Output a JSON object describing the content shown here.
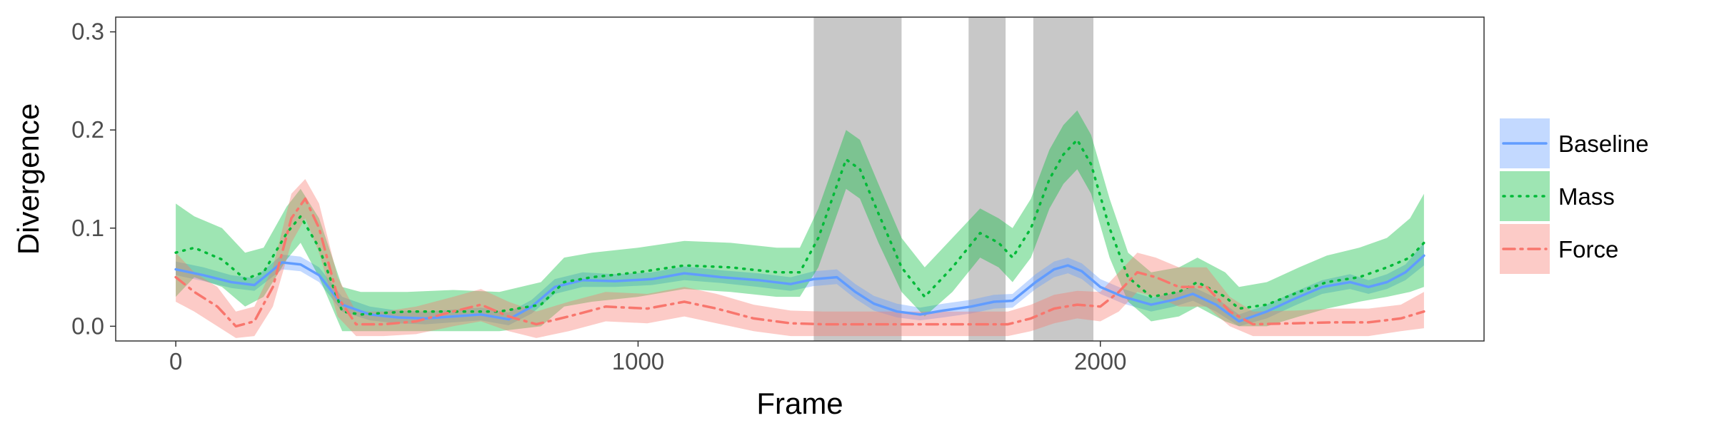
{
  "chart_data": {
    "type": "line",
    "xlabel": "Frame",
    "ylabel": "Divergence",
    "xlim": [
      -130,
      2830
    ],
    "ylim": [
      -0.015,
      0.315
    ],
    "x_ticks": [
      0,
      1000,
      2000
    ],
    "y_ticks": [
      0.0,
      0.1,
      0.2,
      0.3
    ],
    "x_tick_labels": [
      "0",
      "1000",
      "2000"
    ],
    "y_tick_labels": [
      "0.0",
      "0.1",
      "0.2",
      "0.3"
    ],
    "grid": false,
    "legend_position": "right",
    "shaded_regions": [
      [
        1380,
        1570
      ],
      [
        1715,
        1795
      ],
      [
        1855,
        1985
      ]
    ],
    "shade_color": "#c8c8c8",
    "series": [
      {
        "name": "Baseline",
        "color": "#619cff",
        "line_style": "solid",
        "points": [
          [
            0,
            0.058,
            0.052,
            0.066
          ],
          [
            60,
            0.052,
            0.046,
            0.06
          ],
          [
            120,
            0.045,
            0.039,
            0.052
          ],
          [
            170,
            0.042,
            0.036,
            0.049
          ],
          [
            230,
            0.065,
            0.058,
            0.073
          ],
          [
            270,
            0.063,
            0.056,
            0.071
          ],
          [
            310,
            0.052,
            0.045,
            0.06
          ],
          [
            360,
            0.022,
            0.015,
            0.03
          ],
          [
            420,
            0.012,
            0.006,
            0.02
          ],
          [
            480,
            0.009,
            0.003,
            0.016
          ],
          [
            540,
            0.008,
            0.002,
            0.015
          ],
          [
            600,
            0.01,
            0.004,
            0.017
          ],
          [
            660,
            0.012,
            0.006,
            0.019
          ],
          [
            720,
            0.007,
            0.001,
            0.014
          ],
          [
            770,
            0.02,
            0.013,
            0.027
          ],
          [
            820,
            0.04,
            0.033,
            0.048
          ],
          [
            880,
            0.047,
            0.04,
            0.055
          ],
          [
            950,
            0.046,
            0.04,
            0.053
          ],
          [
            1030,
            0.048,
            0.042,
            0.055
          ],
          [
            1100,
            0.054,
            0.047,
            0.061
          ],
          [
            1180,
            0.05,
            0.044,
            0.057
          ],
          [
            1260,
            0.047,
            0.04,
            0.054
          ],
          [
            1330,
            0.043,
            0.036,
            0.05
          ],
          [
            1380,
            0.048,
            0.041,
            0.056
          ],
          [
            1430,
            0.05,
            0.043,
            0.058
          ],
          [
            1470,
            0.035,
            0.028,
            0.043
          ],
          [
            1510,
            0.023,
            0.016,
            0.031
          ],
          [
            1560,
            0.015,
            0.009,
            0.023
          ],
          [
            1610,
            0.012,
            0.006,
            0.019
          ],
          [
            1660,
            0.016,
            0.009,
            0.023
          ],
          [
            1720,
            0.02,
            0.013,
            0.027
          ],
          [
            1770,
            0.025,
            0.018,
            0.032
          ],
          [
            1810,
            0.026,
            0.019,
            0.033
          ],
          [
            1860,
            0.045,
            0.038,
            0.053
          ],
          [
            1900,
            0.058,
            0.05,
            0.066
          ],
          [
            1930,
            0.062,
            0.054,
            0.07
          ],
          [
            1960,
            0.056,
            0.048,
            0.064
          ],
          [
            2000,
            0.04,
            0.033,
            0.048
          ],
          [
            2050,
            0.03,
            0.023,
            0.038
          ],
          [
            2110,
            0.022,
            0.015,
            0.029
          ],
          [
            2160,
            0.027,
            0.02,
            0.034
          ],
          [
            2200,
            0.033,
            0.026,
            0.04
          ],
          [
            2250,
            0.022,
            0.015,
            0.029
          ],
          [
            2300,
            0.005,
            0.0,
            0.012
          ],
          [
            2360,
            0.015,
            0.008,
            0.022
          ],
          [
            2420,
            0.028,
            0.021,
            0.035
          ],
          [
            2480,
            0.04,
            0.033,
            0.047
          ],
          [
            2540,
            0.045,
            0.038,
            0.053
          ],
          [
            2580,
            0.04,
            0.033,
            0.047
          ],
          [
            2620,
            0.045,
            0.038,
            0.053
          ],
          [
            2660,
            0.055,
            0.047,
            0.063
          ],
          [
            2700,
            0.072,
            0.062,
            0.085
          ]
        ]
      },
      {
        "name": "Mass",
        "color": "#00ba38",
        "line_style": "dotted",
        "points": [
          [
            0,
            0.075,
            0.03,
            0.125
          ],
          [
            40,
            0.08,
            0.05,
            0.112
          ],
          [
            100,
            0.068,
            0.04,
            0.1
          ],
          [
            150,
            0.048,
            0.02,
            0.075
          ],
          [
            190,
            0.055,
            0.03,
            0.08
          ],
          [
            240,
            0.095,
            0.068,
            0.122
          ],
          [
            270,
            0.112,
            0.085,
            0.14
          ],
          [
            310,
            0.08,
            0.05,
            0.11
          ],
          [
            360,
            0.015,
            -0.005,
            0.04
          ],
          [
            400,
            0.012,
            -0.005,
            0.035
          ],
          [
            500,
            0.015,
            -0.005,
            0.035
          ],
          [
            600,
            0.015,
            -0.005,
            0.037
          ],
          [
            700,
            0.015,
            -0.005,
            0.035
          ],
          [
            790,
            0.022,
            0.0,
            0.045
          ],
          [
            840,
            0.045,
            0.02,
            0.07
          ],
          [
            900,
            0.05,
            0.025,
            0.075
          ],
          [
            1000,
            0.055,
            0.03,
            0.08
          ],
          [
            1100,
            0.062,
            0.038,
            0.087
          ],
          [
            1200,
            0.06,
            0.035,
            0.085
          ],
          [
            1300,
            0.055,
            0.03,
            0.08
          ],
          [
            1350,
            0.055,
            0.03,
            0.08
          ],
          [
            1390,
            0.09,
            0.06,
            0.12
          ],
          [
            1420,
            0.13,
            0.1,
            0.16
          ],
          [
            1450,
            0.17,
            0.14,
            0.2
          ],
          [
            1480,
            0.16,
            0.13,
            0.19
          ],
          [
            1520,
            0.115,
            0.085,
            0.145
          ],
          [
            1570,
            0.06,
            0.035,
            0.09
          ],
          [
            1620,
            0.03,
            0.01,
            0.06
          ],
          [
            1680,
            0.06,
            0.035,
            0.09
          ],
          [
            1740,
            0.095,
            0.07,
            0.12
          ],
          [
            1780,
            0.085,
            0.06,
            0.11
          ],
          [
            1810,
            0.07,
            0.045,
            0.1
          ],
          [
            1850,
            0.1,
            0.07,
            0.13
          ],
          [
            1890,
            0.15,
            0.12,
            0.18
          ],
          [
            1920,
            0.175,
            0.145,
            0.205
          ],
          [
            1950,
            0.19,
            0.16,
            0.22
          ],
          [
            1980,
            0.165,
            0.135,
            0.195
          ],
          [
            2020,
            0.1,
            0.07,
            0.13
          ],
          [
            2060,
            0.05,
            0.025,
            0.075
          ],
          [
            2110,
            0.03,
            0.005,
            0.055
          ],
          [
            2170,
            0.035,
            0.01,
            0.06
          ],
          [
            2210,
            0.045,
            0.02,
            0.07
          ],
          [
            2270,
            0.03,
            0.005,
            0.055
          ],
          [
            2300,
            0.018,
            0.0,
            0.04
          ],
          [
            2360,
            0.022,
            0.0,
            0.045
          ],
          [
            2430,
            0.035,
            0.01,
            0.06
          ],
          [
            2490,
            0.045,
            0.018,
            0.072
          ],
          [
            2560,
            0.05,
            0.025,
            0.08
          ],
          [
            2620,
            0.06,
            0.03,
            0.09
          ],
          [
            2670,
            0.07,
            0.035,
            0.11
          ],
          [
            2700,
            0.085,
            0.04,
            0.135
          ]
        ]
      },
      {
        "name": "Force",
        "color": "#f8766d",
        "line_style": "dashdot",
        "points": [
          [
            0,
            0.05,
            0.025,
            0.075
          ],
          [
            40,
            0.035,
            0.015,
            0.055
          ],
          [
            90,
            0.02,
            0.0,
            0.04
          ],
          [
            130,
            0.0,
            -0.012,
            0.015
          ],
          [
            170,
            0.005,
            -0.01,
            0.02
          ],
          [
            210,
            0.04,
            0.02,
            0.06
          ],
          [
            250,
            0.11,
            0.085,
            0.135
          ],
          [
            280,
            0.13,
            0.11,
            0.15
          ],
          [
            310,
            0.1,
            0.075,
            0.125
          ],
          [
            350,
            0.03,
            0.01,
            0.05
          ],
          [
            390,
            0.002,
            -0.01,
            0.015
          ],
          [
            450,
            0.002,
            -0.01,
            0.015
          ],
          [
            520,
            0.005,
            -0.008,
            0.02
          ],
          [
            600,
            0.015,
            0.0,
            0.03
          ],
          [
            660,
            0.022,
            0.005,
            0.038
          ],
          [
            720,
            0.01,
            -0.005,
            0.025
          ],
          [
            780,
            0.002,
            -0.012,
            0.015
          ],
          [
            850,
            0.01,
            -0.005,
            0.025
          ],
          [
            930,
            0.02,
            0.005,
            0.035
          ],
          [
            1020,
            0.018,
            0.003,
            0.033
          ],
          [
            1100,
            0.025,
            0.01,
            0.04
          ],
          [
            1170,
            0.018,
            0.003,
            0.033
          ],
          [
            1250,
            0.008,
            -0.005,
            0.022
          ],
          [
            1330,
            0.003,
            -0.01,
            0.016
          ],
          [
            1400,
            0.002,
            -0.01,
            0.015
          ],
          [
            1500,
            0.002,
            -0.01,
            0.015
          ],
          [
            1600,
            0.002,
            -0.01,
            0.015
          ],
          [
            1700,
            0.002,
            -0.01,
            0.015
          ],
          [
            1800,
            0.002,
            -0.01,
            0.015
          ],
          [
            1850,
            0.008,
            -0.005,
            0.022
          ],
          [
            1900,
            0.018,
            0.003,
            0.032
          ],
          [
            1950,
            0.022,
            0.008,
            0.036
          ],
          [
            2000,
            0.02,
            0.005,
            0.035
          ],
          [
            2040,
            0.035,
            0.015,
            0.055
          ],
          [
            2080,
            0.055,
            0.035,
            0.075
          ],
          [
            2120,
            0.05,
            0.03,
            0.07
          ],
          [
            2170,
            0.04,
            0.02,
            0.06
          ],
          [
            2230,
            0.04,
            0.02,
            0.06
          ],
          [
            2280,
            0.015,
            0.0,
            0.03
          ],
          [
            2330,
            0.002,
            -0.01,
            0.015
          ],
          [
            2420,
            0.003,
            -0.01,
            0.016
          ],
          [
            2500,
            0.004,
            -0.01,
            0.018
          ],
          [
            2580,
            0.004,
            -0.01,
            0.018
          ],
          [
            2650,
            0.008,
            -0.005,
            0.022
          ],
          [
            2700,
            0.015,
            -0.002,
            0.035
          ]
        ]
      }
    ]
  }
}
